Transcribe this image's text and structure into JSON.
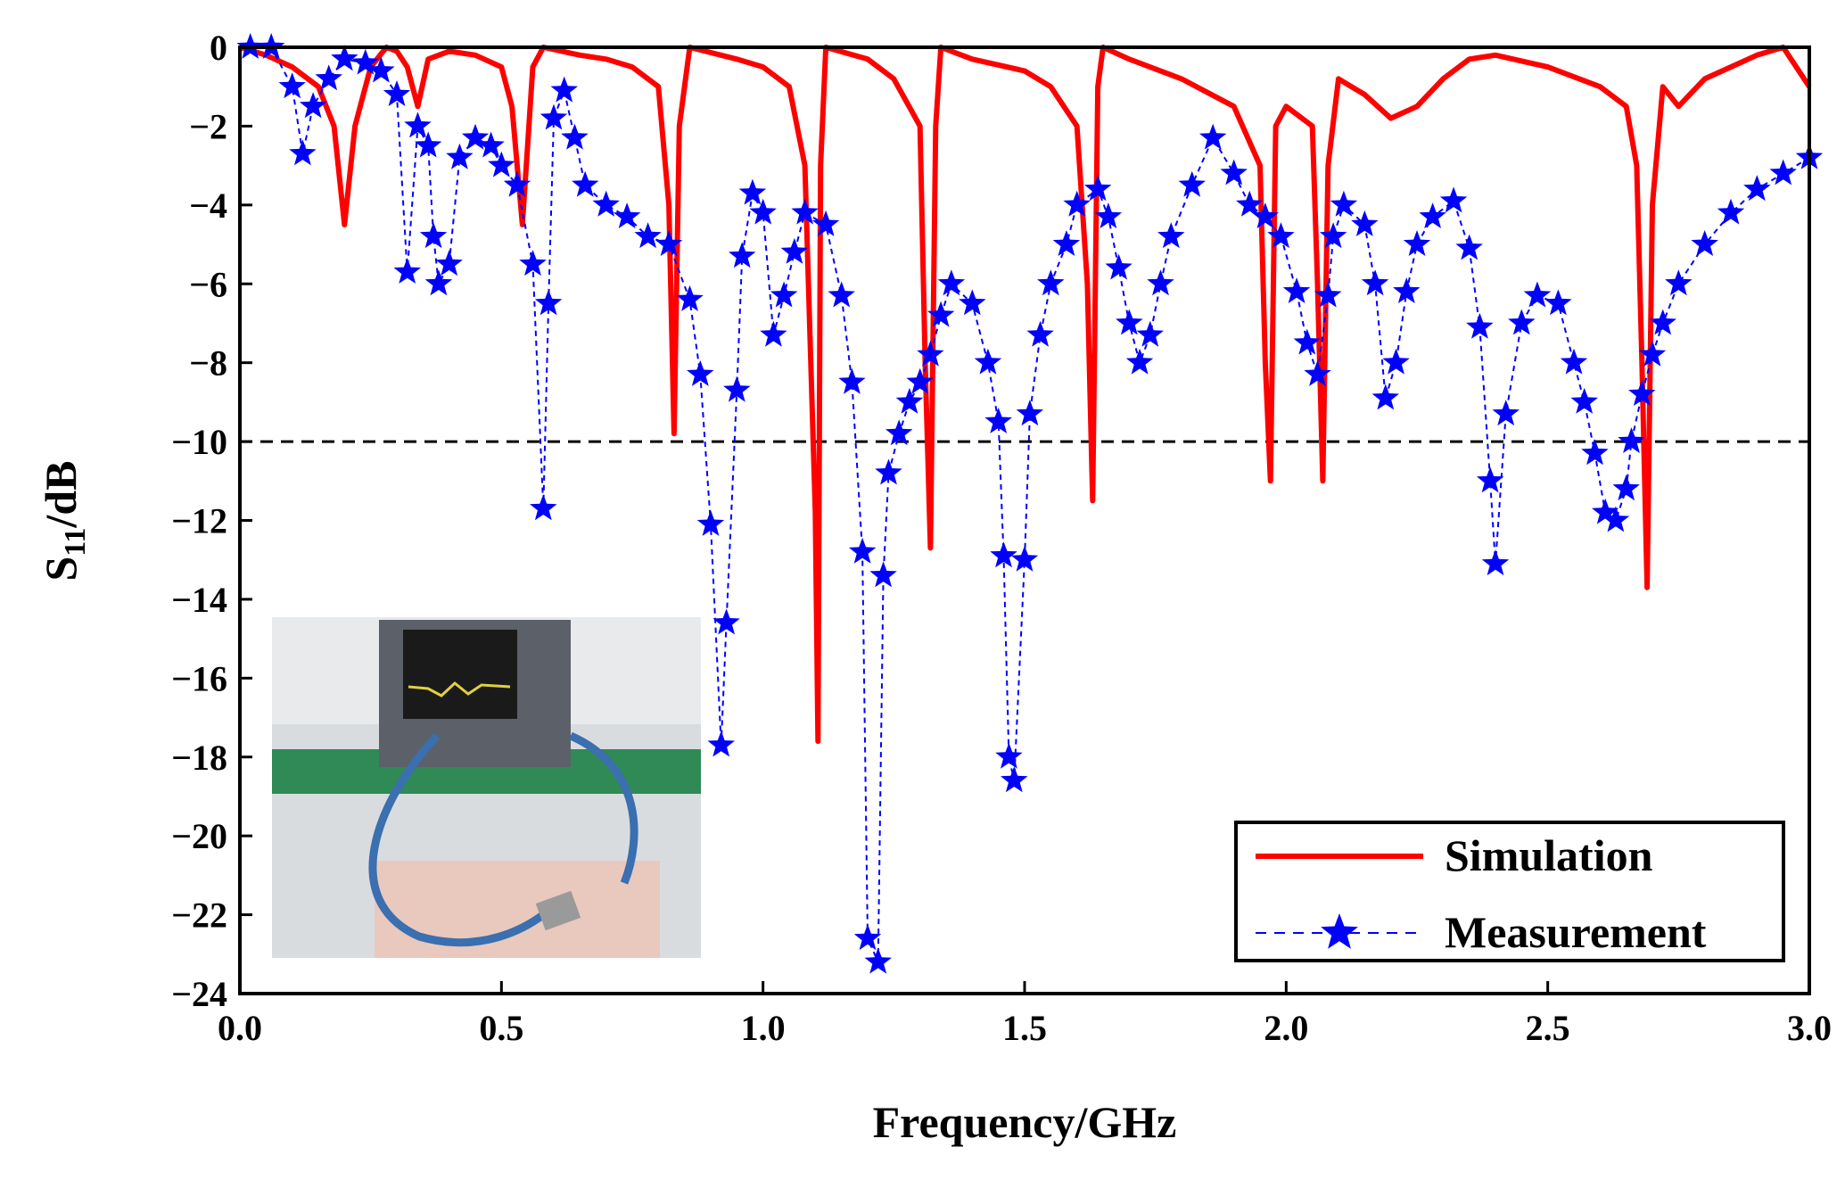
{
  "chart_data": {
    "type": "line",
    "xlabel": "Frequency/GHz",
    "ylabel_parts": [
      "S",
      "11",
      "/dB"
    ],
    "xlim": [
      0,
      3
    ],
    "ylim": [
      -24,
      0
    ],
    "xticks": [
      {
        "value": 0,
        "label": "0.0"
      },
      0.5,
      {
        "value": 1,
        "label": "1.0"
      },
      1.5,
      {
        "value": 2,
        "label": "2.0"
      },
      2.5,
      {
        "value": 3,
        "label": "3.0"
      }
    ],
    "yticks": [
      0,
      {
        "value": -2,
        "label": "−2"
      },
      {
        "value": -4,
        "label": "−4"
      },
      {
        "value": -6,
        "label": "−6"
      },
      {
        "value": -8,
        "label": "−8"
      },
      {
        "value": -10,
        "label": "−10"
      },
      {
        "value": -12,
        "label": "−12"
      },
      {
        "value": -14,
        "label": "−14"
      },
      {
        "value": -16,
        "label": "−16"
      },
      {
        "value": -18,
        "label": "−18"
      },
      {
        "value": -20,
        "label": "−20"
      },
      {
        "value": -22,
        "label": "−22"
      },
      {
        "value": -24,
        "label": "−24"
      }
    ],
    "hline": -10,
    "legend": "lower right",
    "series": [
      {
        "name": "Simulation",
        "color": "#ff0000",
        "style": "solid",
        "x": [
          0.0,
          0.05,
          0.1,
          0.15,
          0.18,
          0.2,
          0.22,
          0.25,
          0.28,
          0.3,
          0.32,
          0.34,
          0.36,
          0.4,
          0.45,
          0.5,
          0.52,
          0.54,
          0.56,
          0.58,
          0.65,
          0.7,
          0.75,
          0.8,
          0.82,
          0.83,
          0.84,
          0.86,
          0.95,
          1.0,
          1.05,
          1.08,
          1.1,
          1.105,
          1.11,
          1.12,
          1.2,
          1.25,
          1.3,
          1.31,
          1.32,
          1.33,
          1.34,
          1.4,
          1.5,
          1.55,
          1.6,
          1.62,
          1.63,
          1.64,
          1.65,
          1.7,
          1.8,
          1.9,
          1.95,
          1.96,
          1.97,
          1.98,
          2.0,
          2.05,
          2.06,
          2.07,
          2.08,
          2.1,
          2.15,
          2.2,
          2.25,
          2.3,
          2.35,
          2.4,
          2.5,
          2.6,
          2.65,
          2.67,
          2.68,
          2.69,
          2.7,
          2.72,
          2.75,
          2.8,
          2.85,
          2.9,
          2.95,
          3.0
        ],
        "values": [
          0,
          -0.2,
          -0.5,
          -1.0,
          -2,
          -4.5,
          -2,
          -0.5,
          0,
          -0.1,
          -0.5,
          -1.5,
          -0.3,
          -0.1,
          -0.2,
          -0.5,
          -1.5,
          -4.5,
          -0.5,
          0,
          -0.2,
          -0.3,
          -0.5,
          -1,
          -4,
          -9.8,
          -2,
          0,
          -0.3,
          -0.5,
          -1,
          -3,
          -11.8,
          -17.6,
          -3,
          0,
          -0.3,
          -0.8,
          -2,
          -8,
          -12.7,
          -2,
          0,
          -0.3,
          -0.6,
          -1,
          -2,
          -6,
          -11.5,
          -1,
          0,
          -0.3,
          -0.8,
          -1.5,
          -3,
          -8,
          -11,
          -2,
          -1.5,
          -2,
          -6,
          -11,
          -3,
          -0.8,
          -1.2,
          -1.8,
          -1.5,
          -0.8,
          -0.3,
          -0.2,
          -0.5,
          -1,
          -1.5,
          -3,
          -8,
          -13.7,
          -4,
          -1,
          -1.5,
          -0.8,
          -0.5,
          -0.2,
          0,
          -1
        ]
      },
      {
        "name": "Measurement",
        "color": "#0000ff",
        "style": "dashed-star",
        "x": [
          0.02,
          0.06,
          0.1,
          0.12,
          0.14,
          0.17,
          0.2,
          0.24,
          0.27,
          0.3,
          0.32,
          0.34,
          0.36,
          0.37,
          0.38,
          0.4,
          0.42,
          0.45,
          0.48,
          0.5,
          0.53,
          0.56,
          0.58,
          0.59,
          0.6,
          0.62,
          0.64,
          0.66,
          0.7,
          0.74,
          0.78,
          0.82,
          0.86,
          0.88,
          0.9,
          0.92,
          0.93,
          0.95,
          0.96,
          0.98,
          1.0,
          1.02,
          1.04,
          1.06,
          1.08,
          1.12,
          1.15,
          1.17,
          1.19,
          1.2,
          1.22,
          1.23,
          1.24,
          1.26,
          1.28,
          1.3,
          1.32,
          1.34,
          1.36,
          1.4,
          1.43,
          1.45,
          1.46,
          1.47,
          1.48,
          1.5,
          1.51,
          1.53,
          1.55,
          1.58,
          1.6,
          1.64,
          1.66,
          1.68,
          1.7,
          1.72,
          1.74,
          1.76,
          1.78,
          1.82,
          1.86,
          1.9,
          1.93,
          1.96,
          1.99,
          2.02,
          2.04,
          2.06,
          2.08,
          2.09,
          2.11,
          2.15,
          2.17,
          2.19,
          2.21,
          2.23,
          2.25,
          2.28,
          2.32,
          2.35,
          2.37,
          2.39,
          2.4,
          2.42,
          2.45,
          2.48,
          2.52,
          2.55,
          2.57,
          2.59,
          2.61,
          2.63,
          2.65,
          2.66,
          2.68,
          2.7,
          2.72,
          2.75,
          2.8,
          2.85,
          2.9,
          2.95,
          3.0
        ],
        "values": [
          0,
          0,
          -1,
          -2.7,
          -1.5,
          -0.8,
          -0.3,
          -0.4,
          -0.6,
          -1.2,
          -5.7,
          -2,
          -2.5,
          -4.8,
          -6,
          -5.5,
          -2.8,
          -2.3,
          -2.5,
          -3,
          -3.5,
          -5.5,
          -11.7,
          -6.5,
          -1.8,
          -1.1,
          -2.3,
          -3.5,
          -4,
          -4.3,
          -4.8,
          -5,
          -6.4,
          -8.3,
          -12.1,
          -17.7,
          -14.6,
          -8.7,
          -5.3,
          -3.7,
          -4.2,
          -7.3,
          -6.3,
          -5.2,
          -4.2,
          -4.5,
          -6.3,
          -8.5,
          -12.8,
          -22.6,
          -23.2,
          -13.4,
          -10.8,
          -9.8,
          -9,
          -8.5,
          -7.8,
          -6.8,
          -6,
          -6.5,
          -8,
          -9.5,
          -12.9,
          -18,
          -18.6,
          -13,
          -9.3,
          -7.3,
          -6,
          -5,
          -4,
          -3.6,
          -4.3,
          -5.6,
          -7,
          -8,
          -7.3,
          -6,
          -4.8,
          -3.5,
          -2.3,
          -3.2,
          -4,
          -4.3,
          -4.8,
          -6.2,
          -7.5,
          -8.3,
          -6.3,
          -4.8,
          -4,
          -4.5,
          -6,
          -8.9,
          -8,
          -6.2,
          -5,
          -4.3,
          -3.9,
          -5.1,
          -7.1,
          -11,
          -13.1,
          -9.3,
          -7,
          -6.3,
          -6.5,
          -8,
          -9,
          -10.3,
          -11.8,
          -12,
          -11.2,
          -10,
          -8.8,
          -7.8,
          -7,
          -6,
          -5,
          -4.2,
          -3.6,
          -3.2,
          -2.8
        ]
      }
    ]
  }
}
